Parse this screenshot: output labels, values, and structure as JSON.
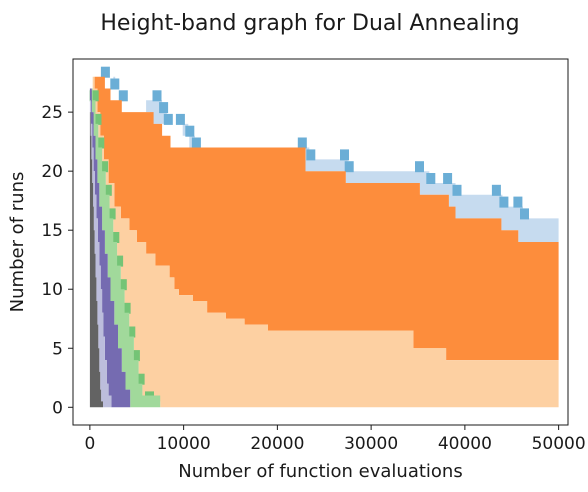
{
  "chart_data": {
    "type": "area",
    "title": "Height-band graph for Dual Annealing",
    "xlabel": "Number of function evaluations",
    "ylabel": "Number of runs",
    "xlim": [
      -1800,
      51000
    ],
    "ylim": [
      -1.5,
      29.5
    ],
    "xticks": [
      0,
      10000,
      20000,
      30000,
      40000,
      50000
    ],
    "xtick_labels": [
      "0",
      "10000",
      "20000",
      "30000",
      "40000",
      "50000"
    ],
    "yticks": [
      0,
      5,
      10,
      15,
      20,
      25
    ],
    "ytick_labels": [
      "0",
      "5",
      "10",
      "15",
      "20",
      "25"
    ],
    "grid": false,
    "legend": "none",
    "total_runs": 28,
    "bands": [
      {
        "color": "#c6dbef",
        "steps": [
          [
            0,
            28
          ],
          [
            2000,
            28
          ],
          [
            2700,
            27
          ],
          [
            3400,
            26
          ],
          [
            5400,
            26
          ],
          [
            6000,
            25
          ],
          [
            6400,
            24
          ],
          [
            9400,
            24
          ],
          [
            9900,
            23
          ],
          [
            10600,
            22
          ],
          [
            11200,
            21
          ],
          [
            22500,
            21
          ],
          [
            23000,
            20
          ],
          [
            26800,
            20
          ],
          [
            27300,
            19
          ],
          [
            34700,
            19
          ],
          [
            35200,
            18
          ],
          [
            37800,
            18
          ],
          [
            38300,
            17
          ],
          [
            39000,
            16
          ],
          [
            43500,
            16
          ],
          [
            43900,
            15
          ],
          [
            45200,
            15
          ],
          [
            45700,
            14
          ],
          [
            50000,
            14
          ]
        ],
        "top": [
          [
            0,
            28
          ],
          [
            50000,
            28
          ]
        ],
        "top_from_band": "upper_envelope",
        "upper": [
          [
            0,
            28
          ],
          [
            1500,
            28
          ],
          [
            2500,
            27
          ],
          [
            3400,
            26
          ],
          [
            7000,
            26
          ],
          [
            7700,
            25
          ],
          [
            8200,
            24
          ],
          [
            9500,
            24
          ],
          [
            10500,
            23
          ],
          [
            11200,
            22
          ],
          [
            22500,
            22
          ],
          [
            23400,
            21
          ],
          [
            27000,
            21
          ],
          [
            27500,
            20
          ],
          [
            35000,
            20
          ],
          [
            36200,
            19
          ],
          [
            38000,
            19
          ],
          [
            39000,
            18
          ],
          [
            43200,
            18
          ],
          [
            44000,
            17
          ],
          [
            45500,
            17
          ],
          [
            46200,
            16
          ],
          [
            50000,
            15
          ]
        ]
      },
      {
        "color": "#6baed6",
        "steps": [
          [
            1500,
            28
          ],
          [
            2500,
            27
          ],
          [
            3400,
            26
          ],
          [
            7000,
            26
          ],
          [
            7700,
            25
          ],
          [
            8200,
            24
          ],
          [
            9500,
            24
          ],
          [
            10500,
            23
          ],
          [
            11200,
            22
          ],
          [
            22500,
            22
          ],
          [
            23400,
            21
          ],
          [
            27000,
            21
          ],
          [
            27500,
            20
          ],
          [
            35000,
            20
          ],
          [
            36200,
            19
          ],
          [
            38000,
            19
          ],
          [
            39000,
            18
          ],
          [
            43200,
            18
          ],
          [
            44000,
            17
          ],
          [
            45500,
            17
          ],
          [
            46200,
            16
          ]
        ]
      },
      {
        "color": "#fd8d3c",
        "upper": [
          [
            0,
            28
          ],
          [
            1000,
            28
          ],
          [
            1600,
            27
          ],
          [
            2200,
            26
          ],
          [
            3400,
            25
          ],
          [
            5500,
            25
          ],
          [
            6800,
            24
          ],
          [
            7700,
            23
          ],
          [
            8600,
            22
          ],
          [
            22500,
            22
          ],
          [
            23000,
            20
          ],
          [
            26800,
            20
          ],
          [
            27300,
            19
          ],
          [
            34700,
            19
          ],
          [
            35200,
            18
          ],
          [
            37800,
            18
          ],
          [
            38300,
            17
          ],
          [
            39000,
            16
          ],
          [
            43500,
            16
          ],
          [
            43900,
            15
          ],
          [
            45200,
            15
          ],
          [
            45700,
            14
          ],
          [
            50000,
            14
          ]
        ],
        "lower": [
          [
            0,
            28
          ],
          [
            500,
            27
          ],
          [
            800,
            25
          ],
          [
            1100,
            23
          ],
          [
            1500,
            21
          ],
          [
            2000,
            19
          ],
          [
            2600,
            17
          ],
          [
            3300,
            16
          ],
          [
            4200,
            15
          ],
          [
            5000,
            14
          ],
          [
            6000,
            13
          ],
          [
            7000,
            12
          ],
          [
            8500,
            11
          ],
          [
            9000,
            10
          ],
          [
            9500,
            9.5
          ],
          [
            11000,
            9
          ],
          [
            12500,
            8
          ],
          [
            14500,
            7.5
          ],
          [
            16500,
            7
          ],
          [
            18000,
            7
          ],
          [
            19000,
            6.5
          ],
          [
            34000,
            6.5
          ],
          [
            34500,
            5
          ],
          [
            37500,
            5
          ],
          [
            38000,
            4
          ],
          [
            50000,
            4
          ]
        ]
      },
      {
        "color": "#fdd0a2",
        "upper": [
          [
            0,
            28
          ],
          [
            500,
            27
          ],
          [
            800,
            25
          ],
          [
            1100,
            23
          ],
          [
            1500,
            21
          ],
          [
            2000,
            19
          ],
          [
            2600,
            17
          ],
          [
            3300,
            16
          ],
          [
            4200,
            15
          ],
          [
            5000,
            14
          ],
          [
            6000,
            13
          ],
          [
            7000,
            12
          ],
          [
            8500,
            11
          ],
          [
            9000,
            10
          ],
          [
            9500,
            9.5
          ],
          [
            11000,
            9
          ],
          [
            12500,
            8
          ],
          [
            14500,
            7.5
          ],
          [
            16500,
            7
          ],
          [
            18000,
            7
          ],
          [
            19000,
            6.5
          ],
          [
            34000,
            6.5
          ],
          [
            34500,
            5
          ],
          [
            37500,
            5
          ],
          [
            38000,
            4
          ],
          [
            50000,
            4
          ]
        ],
        "lower": [
          [
            0,
            28
          ],
          [
            300,
            26
          ],
          [
            600,
            24
          ],
          [
            900,
            22
          ],
          [
            1300,
            20
          ],
          [
            1700,
            18
          ],
          [
            2100,
            16
          ],
          [
            2500,
            14
          ],
          [
            2900,
            12
          ],
          [
            3300,
            10
          ],
          [
            3700,
            8
          ],
          [
            4200,
            6
          ],
          [
            4700,
            4
          ],
          [
            5200,
            2
          ],
          [
            5600,
            1
          ],
          [
            6200,
            0.5
          ],
          [
            7500,
            0
          ],
          [
            50000,
            0
          ]
        ]
      },
      {
        "color": "#74c476",
        "steps": [
          [
            300,
            26
          ],
          [
            600,
            24
          ],
          [
            900,
            22
          ],
          [
            1300,
            20
          ],
          [
            1700,
            18
          ],
          [
            2100,
            16
          ],
          [
            2500,
            14
          ],
          [
            2900,
            12
          ],
          [
            3300,
            10
          ],
          [
            3700,
            8
          ],
          [
            4200,
            6
          ],
          [
            4700,
            4
          ],
          [
            5200,
            2
          ],
          [
            6200,
            0.5
          ]
        ]
      },
      {
        "color": "#a1d99b",
        "upper": [
          [
            0,
            27
          ],
          [
            300,
            26
          ],
          [
            600,
            24
          ],
          [
            900,
            22
          ],
          [
            1300,
            20
          ],
          [
            1700,
            18
          ],
          [
            2100,
            16
          ],
          [
            2500,
            14
          ],
          [
            2900,
            12
          ],
          [
            3300,
            10
          ],
          [
            3700,
            8
          ],
          [
            4200,
            6
          ],
          [
            4700,
            4
          ],
          [
            5200,
            2
          ],
          [
            5600,
            1
          ],
          [
            7500,
            0
          ]
        ],
        "lower": [
          [
            0,
            27
          ],
          [
            200,
            25
          ],
          [
            400,
            23
          ],
          [
            600,
            21
          ],
          [
            800,
            19
          ],
          [
            1000,
            17
          ],
          [
            1300,
            15
          ],
          [
            1600,
            13
          ],
          [
            1900,
            11
          ],
          [
            2200,
            9
          ],
          [
            2600,
            7
          ],
          [
            3000,
            5
          ],
          [
            3400,
            3
          ],
          [
            3800,
            1.5
          ],
          [
            4300,
            0
          ],
          [
            7500,
            0
          ]
        ]
      },
      {
        "color": "#756bb1",
        "upper": [
          [
            0,
            27
          ],
          [
            200,
            25
          ],
          [
            400,
            23
          ],
          [
            600,
            21
          ],
          [
            800,
            19
          ],
          [
            1000,
            17
          ],
          [
            1300,
            15
          ],
          [
            1600,
            13
          ],
          [
            1900,
            11
          ],
          [
            2200,
            9
          ],
          [
            2600,
            7
          ],
          [
            3000,
            5
          ],
          [
            3400,
            3
          ],
          [
            3800,
            1.5
          ],
          [
            4300,
            0
          ]
        ],
        "lower": [
          [
            0,
            26
          ],
          [
            100,
            24
          ],
          [
            250,
            22
          ],
          [
            400,
            20
          ],
          [
            550,
            18
          ],
          [
            700,
            16
          ],
          [
            850,
            14
          ],
          [
            1000,
            12
          ],
          [
            1150,
            10
          ],
          [
            1300,
            8
          ],
          [
            1450,
            6
          ],
          [
            1600,
            4
          ],
          [
            1800,
            2
          ],
          [
            2000,
            1
          ],
          [
            2300,
            0
          ]
        ]
      },
      {
        "color": "#bcbddc",
        "upper": [
          [
            0,
            26
          ],
          [
            100,
            24
          ],
          [
            250,
            22
          ],
          [
            400,
            20
          ],
          [
            550,
            18
          ],
          [
            700,
            16
          ],
          [
            850,
            14
          ],
          [
            1000,
            12
          ],
          [
            1150,
            10
          ],
          [
            1300,
            8
          ],
          [
            1450,
            6
          ],
          [
            1600,
            4
          ],
          [
            1800,
            2
          ],
          [
            2000,
            1
          ],
          [
            2300,
            0
          ],
          [
            3000,
            0
          ]
        ],
        "lower": [
          [
            0,
            25
          ],
          [
            80,
            23
          ],
          [
            160,
            21
          ],
          [
            250,
            19
          ],
          [
            340,
            17
          ],
          [
            420,
            15
          ],
          [
            500,
            13
          ],
          [
            600,
            11
          ],
          [
            700,
            9
          ],
          [
            800,
            7
          ],
          [
            900,
            5
          ],
          [
            1000,
            3
          ],
          [
            1100,
            1.5
          ],
          [
            1200,
            0.5
          ],
          [
            1400,
            0
          ]
        ]
      },
      {
        "color": "#636363",
        "upper": [
          [
            0,
            25
          ],
          [
            80,
            23
          ],
          [
            160,
            21
          ],
          [
            250,
            19
          ],
          [
            340,
            17
          ],
          [
            420,
            15
          ],
          [
            500,
            13
          ],
          [
            600,
            11
          ],
          [
            700,
            9
          ],
          [
            800,
            7
          ],
          [
            900,
            5
          ],
          [
            1000,
            3
          ],
          [
            1100,
            1.5
          ],
          [
            1200,
            0.5
          ],
          [
            1400,
            0
          ]
        ],
        "lower": [
          [
            0,
            25
          ],
          [
            0,
            0
          ]
        ]
      }
    ]
  }
}
